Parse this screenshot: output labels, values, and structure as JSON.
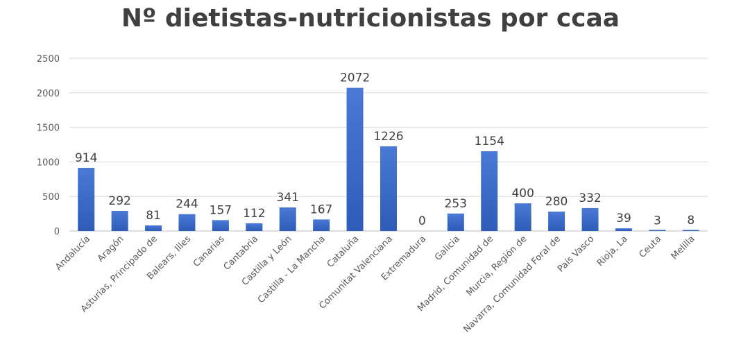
{
  "chart_data": {
    "type": "bar",
    "title": "Nº dietistas-nutricionistas por ccaa",
    "xlabel": "",
    "ylabel": "",
    "ylim": [
      0,
      2500
    ],
    "yticks": [
      0,
      500,
      1000,
      1500,
      2000,
      2500
    ],
    "grid": true,
    "legend": "none",
    "bar_color": "#3d6cc8",
    "categories": [
      "Andalucía",
      "Aragón",
      "Asturias, Principado de",
      "Balears, Illes",
      "Canarias",
      "Cantabria",
      "Castilla y León",
      "Castilla - La Mancha",
      "Cataluña",
      "Comunitat Valenciana",
      "Extremadura",
      "Galicia",
      "Madrid, Comunidad de",
      "Murcia, Región de",
      "Navarra, Comunidad Foral de",
      "País Vasco",
      "Rioja, La",
      "Ceuta",
      "Melilla"
    ],
    "values": [
      914,
      292,
      81,
      244,
      157,
      112,
      341,
      167,
      2072,
      1226,
      0,
      253,
      1154,
      400,
      280,
      332,
      39,
      3,
      8
    ]
  }
}
